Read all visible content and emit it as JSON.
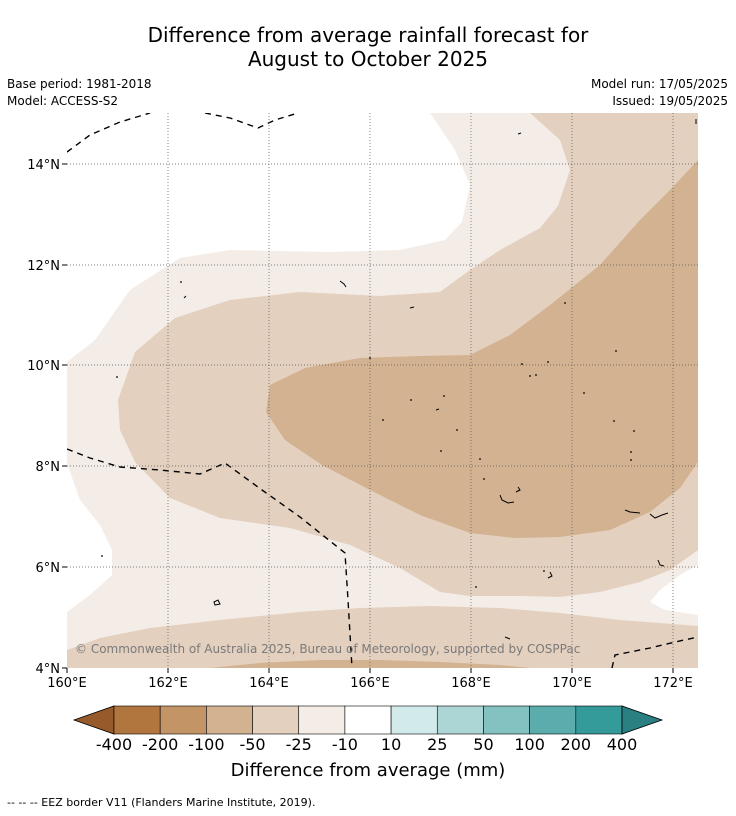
{
  "title": {
    "line1": "Difference from average rainfall forecast for",
    "line2": "August to October 2025"
  },
  "meta": {
    "base_period": "Base period: 1981-2018",
    "model": "Model: ACCESS-S2",
    "model_run": "Model run: 17/05/2025",
    "issued": "Issued: 19/05/2025"
  },
  "map": {
    "region": "Pacific Ocean, 4°N–15°N, 160°E–172.5°E",
    "lat_ticks": [
      "4°N",
      "6°N",
      "8°N",
      "10°N",
      "12°N",
      "14°N"
    ],
    "lon_ticks": [
      "160°E",
      "162°E",
      "164°E",
      "166°E",
      "168°E",
      "170°E",
      "172°E"
    ],
    "copyright": "© Commonwealth of Australia 2025, Bureau of Meteorology, supported by COSPPac",
    "border_style": "dashed",
    "gridlines": true
  },
  "legend": {
    "labels": [
      "-400",
      "-200",
      "-100",
      "-50",
      "-25",
      "-10",
      "10",
      "25",
      "50",
      "100",
      "200",
      "400"
    ],
    "colors": [
      "#965a2b",
      "#b0763e",
      "#c39466",
      "#d3b291",
      "#e3d0bf",
      "#f4ede7",
      "#ffffff",
      "#d2ebea",
      "#acd6d5",
      "#84c1c1",
      "#5aadac",
      "#349a9a",
      "#2a7f80"
    ],
    "title": "Difference from average (mm)"
  },
  "footnote": "-- -- -- EEZ border V11 (Flanders Marine Institute, 2019)."
}
